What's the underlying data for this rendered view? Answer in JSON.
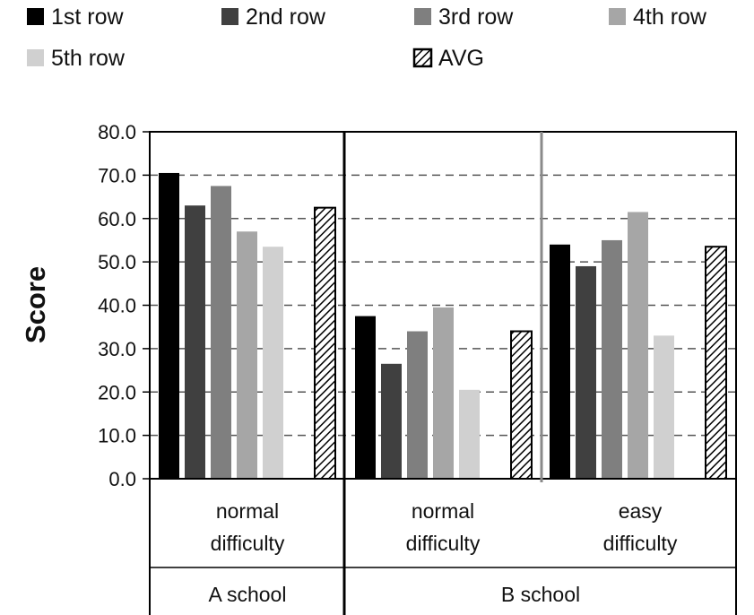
{
  "chart_data": {
    "type": "bar",
    "ylabel": "Score",
    "ylim": [
      0,
      80
    ],
    "yticks": [
      "0.0",
      "10.0",
      "20.0",
      "30.0",
      "40.0",
      "50.0",
      "60.0",
      "70.0",
      "80.0"
    ],
    "grid": "dashed horizontal",
    "legend_position": "top",
    "series": [
      {
        "name": "1st row",
        "color": "#000000",
        "values": [
          70.5,
          37.5,
          54.0
        ]
      },
      {
        "name": "2nd row",
        "color": "#404040",
        "values": [
          63.0,
          26.5,
          49.0
        ]
      },
      {
        "name": "3rd row",
        "color": "#7f7f7f",
        "values": [
          67.5,
          34.0,
          55.0
        ]
      },
      {
        "name": "4th row",
        "color": "#a6a6a6",
        "values": [
          57.0,
          39.5,
          61.5
        ]
      },
      {
        "name": "5th row",
        "color": "#d0d0d0",
        "values": [
          53.5,
          20.5,
          33.0
        ]
      },
      {
        "name": "AVG",
        "pattern": "diagonal-hatch",
        "values": [
          62.5,
          34.0,
          53.5
        ]
      }
    ],
    "groups": [
      {
        "difficulty": [
          "normal",
          "difficulty"
        ],
        "school": "A school"
      },
      {
        "difficulty": [
          "normal",
          "difficulty"
        ],
        "school": "B school"
      },
      {
        "difficulty": [
          "easy",
          "difficulty"
        ],
        "school": "B school"
      }
    ],
    "schools": [
      "A school",
      "B school"
    ]
  }
}
